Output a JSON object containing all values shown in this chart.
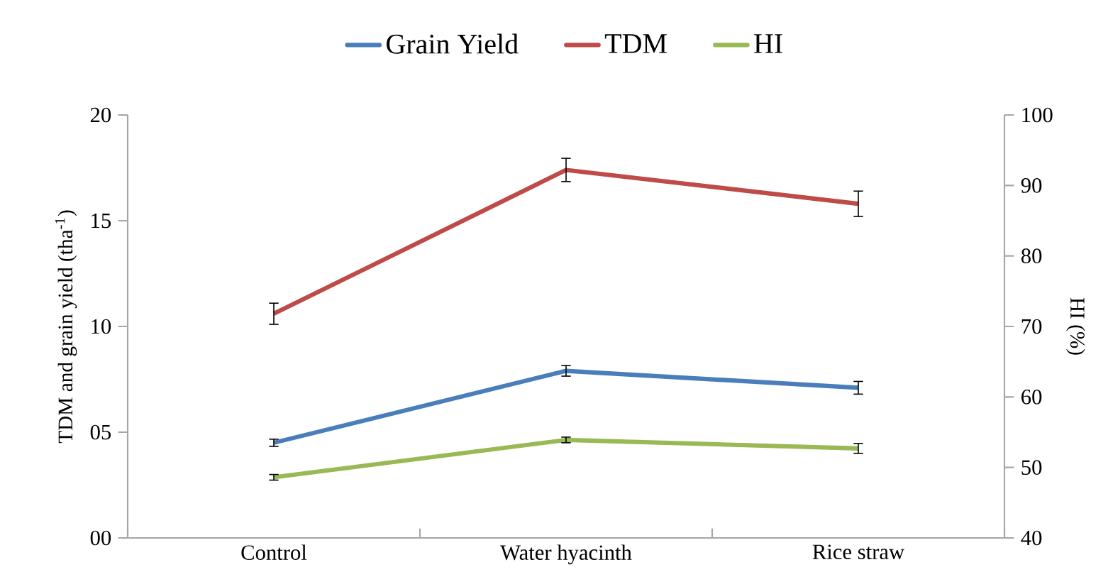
{
  "chart_data": {
    "type": "line",
    "categories": [
      "Control",
      "Water hyacinth",
      "Rice straw"
    ],
    "ylabel": "TDM and grain yield (tha$^{-1}$)",
    "y2label": "HI (%)",
    "series": [
      {
        "name": "Grain Yield",
        "color": "#4a7ebb",
        "values": [
          4.5,
          7.9,
          7.1
        ],
        "errors": [
          0.17,
          0.25,
          0.3
        ]
      },
      {
        "name": "TDM",
        "color": "#be4b48",
        "values": [
          10.6,
          17.4,
          15.8
        ],
        "errors": [
          0.5,
          0.55,
          0.6
        ]
      },
      {
        "name": "HI",
        "color": "#98b954",
        "axis": "y2",
        "values": [
          48.6,
          53.9,
          52.7
        ],
        "errors": [
          0.4,
          0.4,
          0.7
        ]
      }
    ],
    "ylim": [
      0,
      20
    ],
    "yticks": [
      {
        "value": 0,
        "label": "00"
      },
      {
        "value": 5,
        "label": "05"
      },
      10,
      15,
      20
    ],
    "y2lim": [
      40,
      100
    ],
    "y2ticks": [
      40,
      50,
      60,
      70,
      80,
      90,
      100
    ],
    "legend": "top",
    "grid": false,
    "marker": "none",
    "line_style": "solid"
  }
}
